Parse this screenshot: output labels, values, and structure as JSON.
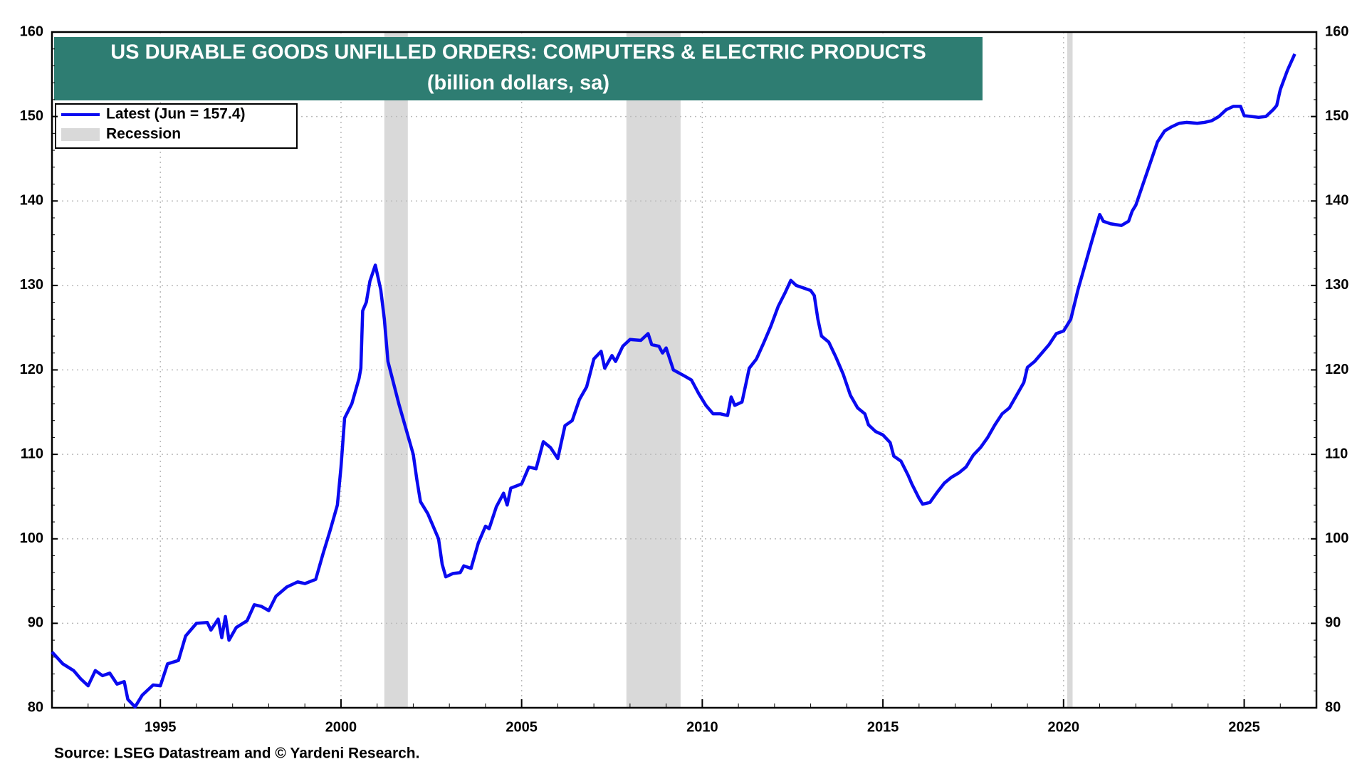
{
  "chart_data": {
    "type": "line",
    "title": "US DURABLE GOODS UNFILLED ORDERS: COMPUTERS & ELECTRIC PRODUCTS",
    "subtitle": "(billion dollars, sa)",
    "source": "Source: LSEG Datastream and © Yardeni Research.",
    "xlim": [
      1992,
      2027
    ],
    "xticks": [
      1995,
      2000,
      2005,
      2010,
      2015,
      2020,
      2025
    ],
    "ylim": [
      80,
      160
    ],
    "yticks": [
      80,
      90,
      100,
      110,
      120,
      130,
      140,
      150,
      160
    ],
    "grid": true,
    "legend": "top-left",
    "recessions": {
      "name": "Recession",
      "color": "#d9d9d9",
      "ranges": [
        [
          2001.2,
          2001.85
        ],
        [
          2007.9,
          2009.4
        ],
        [
          2020.1,
          2020.25
        ]
      ]
    },
    "x": [
      1992.0,
      1992.3,
      1992.6,
      1992.8,
      1993.0,
      1993.2,
      1993.4,
      1993.6,
      1993.8,
      1994.0,
      1994.1,
      1994.3,
      1994.5,
      1994.8,
      1995.0,
      1995.2,
      1995.5,
      1995.7,
      1996.0,
      1996.3,
      1996.4,
      1996.6,
      1996.7,
      1996.8,
      1996.9,
      1997.1,
      1997.4,
      1997.6,
      1997.8,
      1998.0,
      1998.2,
      1998.5,
      1998.8,
      1999.0,
      1999.3,
      1999.5,
      1999.7,
      1999.9,
      2000.0,
      2000.1,
      2000.3,
      2000.5,
      2000.55,
      2000.6,
      2000.7,
      2000.8,
      2000.95,
      2001.1,
      2001.2,
      2001.3,
      2001.6,
      2001.9,
      2002.0,
      2002.1,
      2002.2,
      2002.4,
      2002.7,
      2002.8,
      2002.9,
      2003.1,
      2003.3,
      2003.4,
      2003.6,
      2003.8,
      2004.0,
      2004.1,
      2004.3,
      2004.5,
      2004.6,
      2004.7,
      2005.0,
      2005.2,
      2005.4,
      2005.6,
      2005.8,
      2006.0,
      2006.2,
      2006.4,
      2006.6,
      2006.8,
      2007.0,
      2007.2,
      2007.3,
      2007.5,
      2007.6,
      2007.8,
      2008.0,
      2008.3,
      2008.5,
      2008.6,
      2008.8,
      2008.9,
      2009.0,
      2009.2,
      2009.5,
      2009.7,
      2009.9,
      2010.1,
      2010.3,
      2010.5,
      2010.7,
      2010.8,
      2010.9,
      2011.1,
      2011.3,
      2011.5,
      2011.7,
      2011.9,
      2012.1,
      2012.3,
      2012.45,
      2012.6,
      2012.8,
      2013.0,
      2013.1,
      2013.2,
      2013.3,
      2013.5,
      2013.7,
      2013.9,
      2014.1,
      2014.3,
      2014.5,
      2014.6,
      2014.8,
      2015.0,
      2015.2,
      2015.3,
      2015.5,
      2015.7,
      2015.8,
      2016.0,
      2016.1,
      2016.3,
      2016.5,
      2016.7,
      2016.9,
      2017.1,
      2017.3,
      2017.5,
      2017.7,
      2017.9,
      2018.1,
      2018.3,
      2018.5,
      2018.7,
      2018.9,
      2019.0,
      2019.2,
      2019.4,
      2019.6,
      2019.8,
      2020.0,
      2020.2,
      2020.4,
      2020.6,
      2020.8,
      2021.0,
      2021.1,
      2021.3,
      2021.6,
      2021.8,
      2021.9,
      2022.0,
      2022.2,
      2022.4,
      2022.6,
      2022.8,
      2023.0,
      2023.2,
      2023.4,
      2023.7,
      2023.9,
      2024.1,
      2024.3,
      2024.5,
      2024.7,
      2024.9,
      2025.0,
      2025.2,
      2025.4,
      2025.6,
      2025.8,
      2025.9,
      2026.0,
      2026.2,
      2026.4
    ],
    "series": [
      {
        "name": "Latest (Jun = 157.4)",
        "color": "#0a0af0",
        "values": [
          86.6,
          85.2,
          84.4,
          83.4,
          82.6,
          84.4,
          83.8,
          84.1,
          82.8,
          83.1,
          81.0,
          80.1,
          81.5,
          82.7,
          82.6,
          85.2,
          85.6,
          88.5,
          90.0,
          90.1,
          89.2,
          90.5,
          88.3,
          90.8,
          88.0,
          89.5,
          90.3,
          92.2,
          92.0,
          91.5,
          93.2,
          94.3,
          94.9,
          94.7,
          95.2,
          98.2,
          101.0,
          104.0,
          108.5,
          114.3,
          116.0,
          119.0,
          120.2,
          127.0,
          128.0,
          130.5,
          132.4,
          129.5,
          126.0,
          121.0,
          116.0,
          111.5,
          110.0,
          107.0,
          104.4,
          103.0,
          100.0,
          97.0,
          95.5,
          95.9,
          96.0,
          96.8,
          96.5,
          99.5,
          101.5,
          101.2,
          103.8,
          105.4,
          104.0,
          106.0,
          106.5,
          108.5,
          108.3,
          111.5,
          110.8,
          109.5,
          113.4,
          114.0,
          116.5,
          118.0,
          121.3,
          122.2,
          120.2,
          121.7,
          121.0,
          122.8,
          123.6,
          123.5,
          124.3,
          123.0,
          122.8,
          122.0,
          122.6,
          120.0,
          119.3,
          118.8,
          117.2,
          115.8,
          114.8,
          114.8,
          114.6,
          116.8,
          115.8,
          116.2,
          120.2,
          121.3,
          123.2,
          125.2,
          127.5,
          129.2,
          130.6,
          130.0,
          129.7,
          129.4,
          128.8,
          126.0,
          124.0,
          123.3,
          121.5,
          119.5,
          117.0,
          115.5,
          114.8,
          113.5,
          112.7,
          112.3,
          111.4,
          109.8,
          109.2,
          107.5,
          106.5,
          104.8,
          104.1,
          104.3,
          105.5,
          106.6,
          107.3,
          107.8,
          108.5,
          109.9,
          110.8,
          112.0,
          113.5,
          114.8,
          115.5,
          117.0,
          118.5,
          120.3,
          121.0,
          122.0,
          123.0,
          124.3,
          124.6,
          126.0,
          129.5,
          132.5,
          135.5,
          138.4,
          137.6,
          137.3,
          137.1,
          137.6,
          138.8,
          139.5,
          142.0,
          144.5,
          147.0,
          148.3,
          148.8,
          149.2,
          149.3,
          149.2,
          149.3,
          149.5,
          150.0,
          150.8,
          151.2,
          151.2,
          150.1,
          150.0,
          149.9,
          150.0,
          150.8,
          151.3,
          153.2,
          155.5,
          157.4
        ]
      }
    ]
  }
}
